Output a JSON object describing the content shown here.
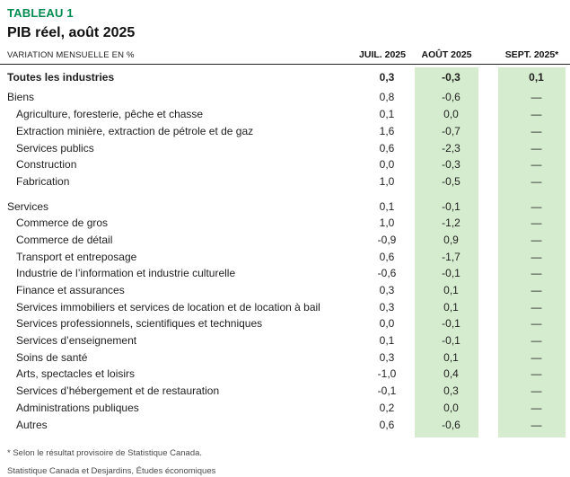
{
  "header": {
    "table_label": "TABLEAU 1",
    "title": "PIB réel, août 2025"
  },
  "chart_data": {
    "type": "table",
    "title": "PIB réel, août 2025",
    "unit_label": "VARIATION MENSUELLE EN %",
    "columns": [
      "JUIL. 2025",
      "AOÛT 2025",
      "SEPT. 2025*"
    ],
    "highlighted_columns": [
      "AOÛT 2025",
      "SEPT. 2025*"
    ],
    "rows": [
      {
        "label": "Toutes les industries",
        "values": [
          "0,3",
          "-0,3",
          "0,1"
        ],
        "bold": true,
        "indent": 0,
        "gap_before": false
      },
      {
        "label": "Biens",
        "values": [
          "0,8",
          "-0,6",
          "—"
        ],
        "bold": false,
        "indent": 0,
        "gap_before": "small"
      },
      {
        "label": "Agriculture, foresterie, pêche et chasse",
        "values": [
          "0,1",
          "0,0",
          "—"
        ],
        "bold": false,
        "indent": 1,
        "gap_before": false
      },
      {
        "label": "Extraction minière, extraction de pétrole et de gaz",
        "values": [
          "1,6",
          "-0,7",
          "—"
        ],
        "bold": false,
        "indent": 1,
        "gap_before": false
      },
      {
        "label": "Services publics",
        "values": [
          "0,6",
          "-2,3",
          "—"
        ],
        "bold": false,
        "indent": 1,
        "gap_before": false
      },
      {
        "label": "Construction",
        "values": [
          "0,0",
          "-0,3",
          "—"
        ],
        "bold": false,
        "indent": 1,
        "gap_before": false
      },
      {
        "label": "Fabrication",
        "values": [
          "1,0",
          "-0,5",
          "—"
        ],
        "bold": false,
        "indent": 1,
        "gap_before": false
      },
      {
        "label": "Services",
        "values": [
          "0,1",
          "-0,1",
          "—"
        ],
        "bold": false,
        "indent": 0,
        "gap_before": true
      },
      {
        "label": "Commerce de gros",
        "values": [
          "1,0",
          "-1,2",
          "—"
        ],
        "bold": false,
        "indent": 1,
        "gap_before": false
      },
      {
        "label": "Commerce de détail",
        "values": [
          "-0,9",
          "0,9",
          "—"
        ],
        "bold": false,
        "indent": 1,
        "gap_before": false
      },
      {
        "label": "Transport et entreposage",
        "values": [
          "0,6",
          "-1,7",
          "—"
        ],
        "bold": false,
        "indent": 1,
        "gap_before": false
      },
      {
        "label": "Industrie de l’information et industrie culturelle",
        "values": [
          "-0,6",
          "-0,1",
          "—"
        ],
        "bold": false,
        "indent": 1,
        "gap_before": false
      },
      {
        "label": "Finance et assurances",
        "values": [
          "0,3",
          "0,1",
          "—"
        ],
        "bold": false,
        "indent": 1,
        "gap_before": false
      },
      {
        "label": "Services immobiliers et services de location et de location à bail",
        "values": [
          "0,3",
          "0,1",
          "—"
        ],
        "bold": false,
        "indent": 1,
        "gap_before": false
      },
      {
        "label": "Services professionnels, scientifiques et techniques",
        "values": [
          "0,0",
          "-0,1",
          "—"
        ],
        "bold": false,
        "indent": 1,
        "gap_before": false
      },
      {
        "label": "Services d’enseignement",
        "values": [
          "0,1",
          "-0,1",
          "—"
        ],
        "bold": false,
        "indent": 1,
        "gap_before": false
      },
      {
        "label": "Soins de santé",
        "values": [
          "0,3",
          "0,1",
          "—"
        ],
        "bold": false,
        "indent": 1,
        "gap_before": false
      },
      {
        "label": "Arts, spectacles et loisirs",
        "values": [
          "-1,0",
          "0,4",
          "—"
        ],
        "bold": false,
        "indent": 1,
        "gap_before": false
      },
      {
        "label": "Services d’hébergement et de restauration",
        "values": [
          "-0,1",
          "0,3",
          "—"
        ],
        "bold": false,
        "indent": 1,
        "gap_before": false
      },
      {
        "label": "Administrations publiques",
        "values": [
          "0,2",
          "0,0",
          "—"
        ],
        "bold": false,
        "indent": 1,
        "gap_before": false
      },
      {
        "label": "Autres",
        "values": [
          "0,6",
          "-0,6",
          "—"
        ],
        "bold": false,
        "indent": 1,
        "gap_before": false
      }
    ]
  },
  "footnotes": [
    "* Selon le résultat provisoire de Statistique Canada.",
    "Statistique Canada et Desjardins, Études économiques"
  ],
  "colors": {
    "accent_green": "#008c50",
    "highlight_green": "#d6eccf",
    "rule": "#222222"
  }
}
